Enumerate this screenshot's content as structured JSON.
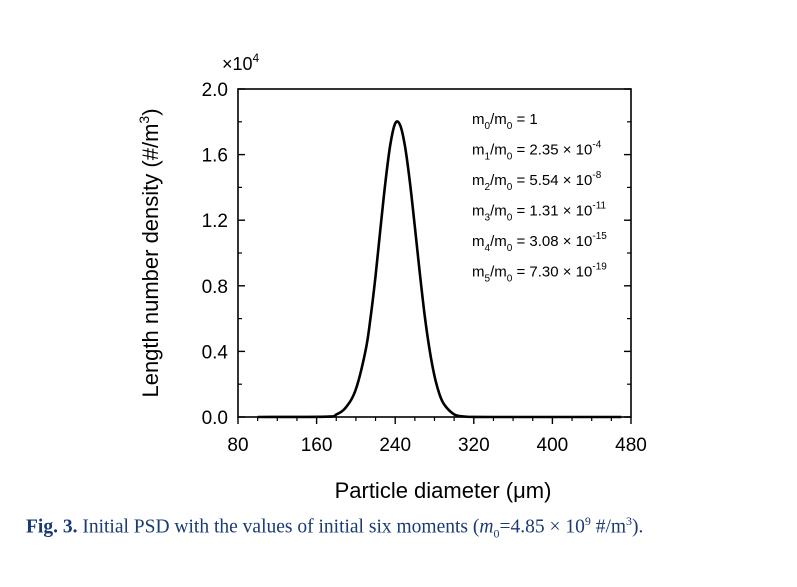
{
  "chart_data": {
    "type": "line",
    "xlabel": "Particle diameter (μm)",
    "ylabel": "Length number density (#/m",
    "ylabel_sup": "3",
    "ylabel_close": ")",
    "y_multiplier": {
      "prefix": "×10",
      "exp": "4"
    },
    "xlim": [
      80,
      480
    ],
    "ylim": [
      0.0,
      2.0
    ],
    "x_ticks": [
      80,
      160,
      240,
      320,
      400,
      480
    ],
    "x_tick_labels": [
      "80",
      "160",
      "240",
      "320",
      "400",
      "480"
    ],
    "y_ticks": [
      0.0,
      0.4,
      0.8,
      1.2,
      1.6,
      2.0
    ],
    "y_tick_labels": [
      "0.0",
      "0.4",
      "0.8",
      "1.2",
      "1.6",
      "2.0"
    ],
    "series": [
      {
        "name": "Initial PSD",
        "x": [
          100,
          170,
          180,
          190,
          200,
          210,
          215,
          220,
          225,
          230,
          235,
          240,
          245,
          250,
          255,
          260,
          265,
          270,
          275,
          280,
          285,
          290,
          300,
          310,
          320,
          340,
          380,
          470
        ],
        "y": [
          0.0,
          0.002,
          0.015,
          0.06,
          0.17,
          0.41,
          0.61,
          0.86,
          1.15,
          1.43,
          1.66,
          1.79,
          1.78,
          1.65,
          1.43,
          1.16,
          0.88,
          0.62,
          0.41,
          0.25,
          0.14,
          0.075,
          0.016,
          0.003,
          0.0005,
          0.0,
          0.0,
          0.0
        ]
      }
    ],
    "annotations": [
      {
        "sub1": "0",
        "sub2": "0",
        "value": " = 1",
        "sup": ""
      },
      {
        "sub1": "1",
        "sub2": "0",
        "value": " = 2.35 × 10",
        "sup": "-4"
      },
      {
        "sub1": "2",
        "sub2": "0",
        "value": " = 5.54 × 10",
        "sup": "-8"
      },
      {
        "sub1": "3",
        "sub2": "0",
        "value": " = 1.31 × 10",
        "sup": "-11"
      },
      {
        "sub1": "4",
        "sub2": "0",
        "value": " = 3.08 × 10",
        "sup": "-15"
      },
      {
        "sub1": "5",
        "sub2": "0",
        "value": " = 7.30 × 10",
        "sup": "-19"
      }
    ]
  },
  "caption": {
    "fig_label": "Fig. 3.",
    "text": " Initial PSD with the values of initial six moments (",
    "m": "m",
    "m_sub": "0",
    "eq": "=4.85 × 10",
    "exp": "9",
    "unit": " #/m",
    "unit_sup": "3",
    "close": ")."
  }
}
